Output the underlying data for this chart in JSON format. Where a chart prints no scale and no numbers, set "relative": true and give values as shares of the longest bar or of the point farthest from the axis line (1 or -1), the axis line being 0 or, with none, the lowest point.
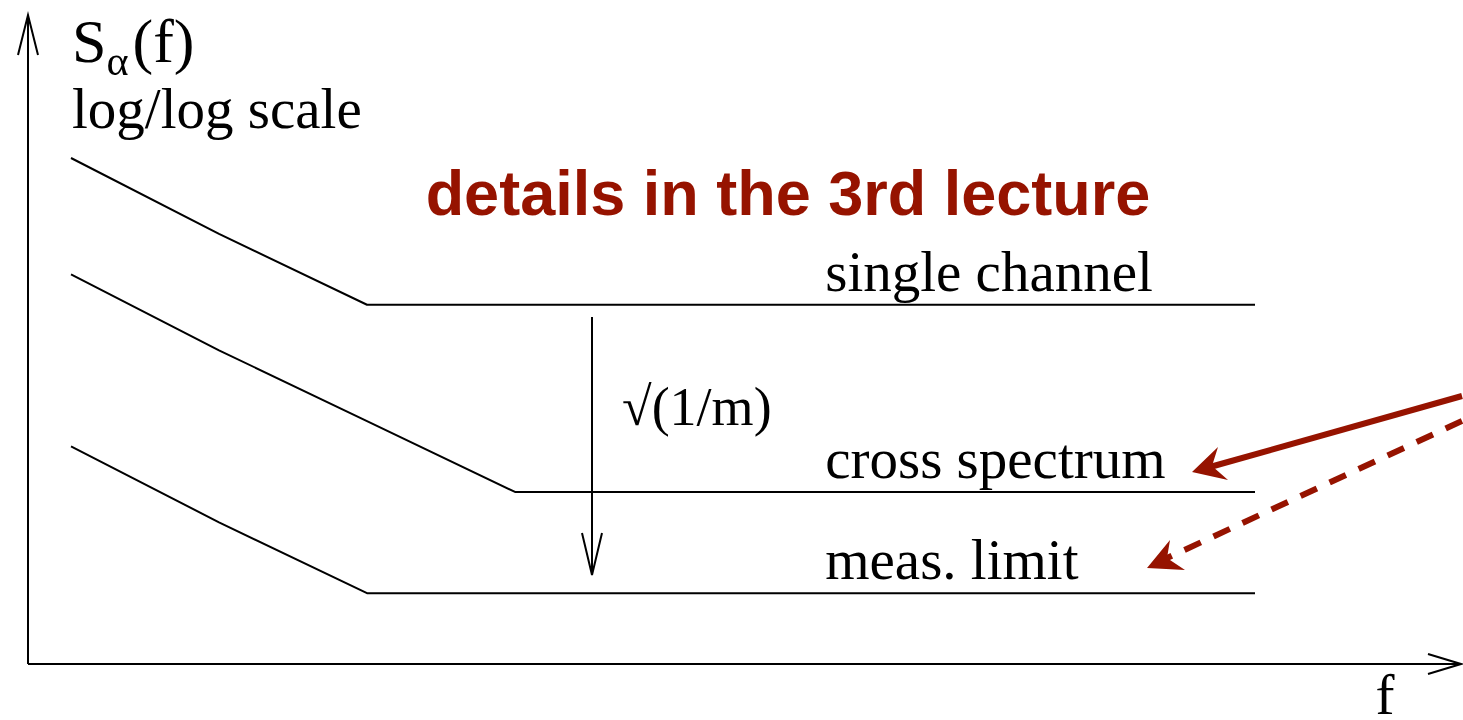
{
  "chart_data": {
    "type": "line",
    "title": "details in the 3rd lecture",
    "xlabel": "f",
    "ylabel": "S$_{α}$(f)",
    "annotations": [
      "log/log scale",
      "√(1/m)"
    ],
    "categories": [
      null,
      null,
      null,
      null,
      null,
      null,
      null,
      null,
      null
    ],
    "series": [
      {
        "name": "single channel",
        "color": "#000000",
        "values": [
          1,
          0.85,
          0.71,
          0.71,
          0.71,
          0.71,
          0.71,
          0.71,
          0.71
        ]
      },
      {
        "name": "cross spectrum",
        "color": "#000000",
        "values": [
          0.77,
          0.62,
          0.48,
          0.34,
          0.34,
          0.34,
          0.34,
          0.34,
          0.34
        ]
      },
      {
        "name": "meas. limit",
        "color": "#000000",
        "values": [
          0.43,
          0.28,
          0.14,
          0.14,
          0.14,
          0.14,
          0.14,
          0.14,
          0.14
        ]
      }
    ],
    "relative": true,
    "marker": "none",
    "tick_labels": false
  }
}
